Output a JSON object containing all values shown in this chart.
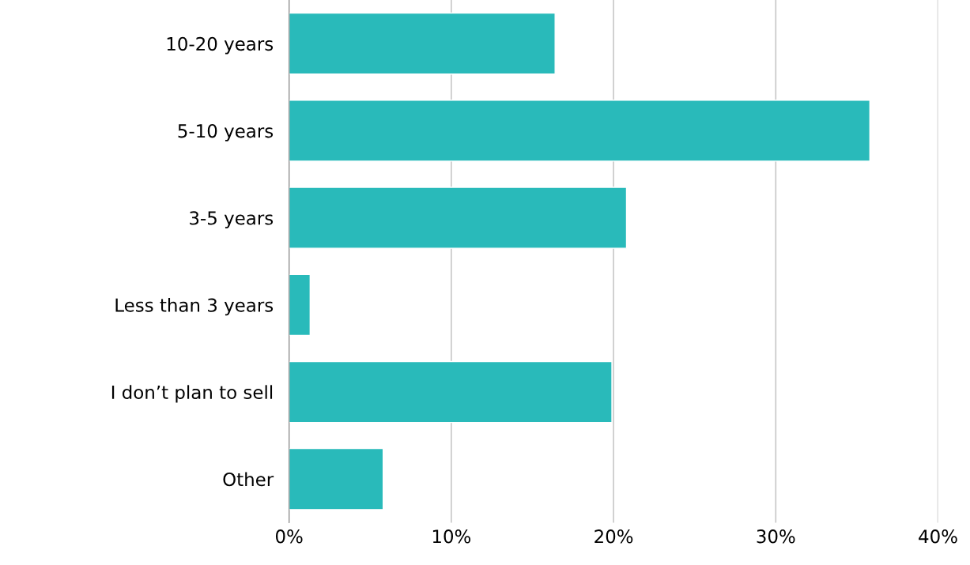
{
  "chart_data": {
    "type": "bar",
    "orientation": "horizontal",
    "categories": [
      "10-20 years",
      "5-10 years",
      "3-5 years",
      "Less than 3 years",
      "I don’t plan to sell",
      "Other"
    ],
    "values": [
      16.4,
      35.8,
      20.8,
      1.3,
      19.9,
      5.8
    ],
    "color": "#29baba",
    "xlim": [
      0,
      40
    ],
    "xticks": [
      {
        "value": 0,
        "label": "0%"
      },
      {
        "value": 10,
        "label": "10%"
      },
      {
        "value": 20,
        "label": "20%"
      },
      {
        "value": 30,
        "label": "30%"
      },
      {
        "value": 40,
        "label": "40%"
      }
    ],
    "grid": "x",
    "legend": false
  }
}
